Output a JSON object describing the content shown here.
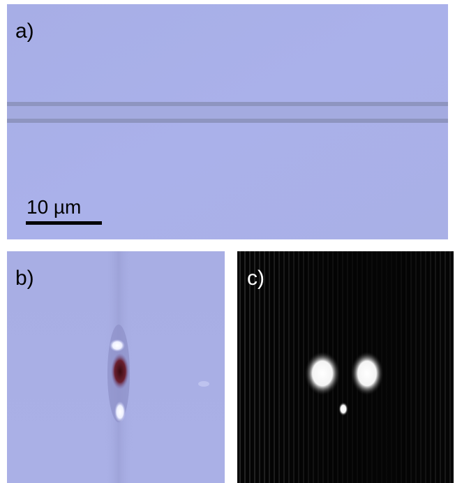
{
  "panels": [
    {
      "label": "a)",
      "scale_bar": "10 µm"
    },
    {
      "label": "b)"
    },
    {
      "label": "c)"
    }
  ]
}
